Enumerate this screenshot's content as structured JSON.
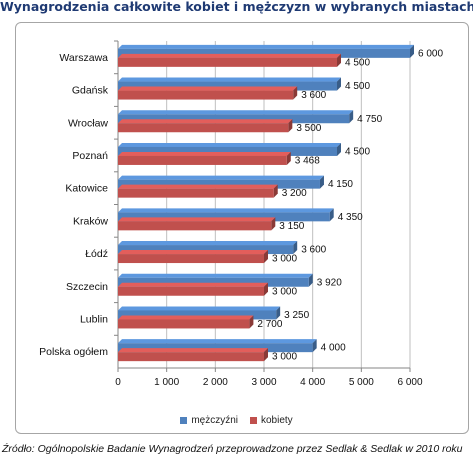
{
  "title": "Wynagrodzenia całkowite kobiet i mężczyzn w  wybranych miastach",
  "source": "Źródło: Ogólnopolskie Badanie Wynagrodzeń przeprowadzone przez Sedlak & Sedlak w 2010 roku",
  "chart_data": {
    "type": "bar",
    "orientation": "horizontal",
    "title": "Wynagrodzenia całkowite kobiet i mężczyzn w  wybranych miastach",
    "categories": [
      "Warszawa",
      "Gdańsk",
      "Wrocław",
      "Poznań",
      "Katowice",
      "Kraków",
      "Łódź",
      "Szczecin",
      "Lublin",
      "Polska ogółem"
    ],
    "series": [
      {
        "name": "mężczyźni",
        "color": "#4f81bd",
        "values": [
          6000,
          4500,
          4750,
          4500,
          4150,
          4350,
          3600,
          3920,
          3250,
          4000
        ],
        "labels": [
          "6 000",
          "4 500",
          "4 750",
          "4 500",
          "4 150",
          "4 350",
          "3 600",
          "3 920",
          "3 250",
          "4 000"
        ]
      },
      {
        "name": "kobiety",
        "color": "#c0504d",
        "values": [
          4500,
          3600,
          3500,
          3468,
          3200,
          3150,
          3000,
          3000,
          2700,
          3000
        ],
        "labels": [
          "4 500",
          "3 600",
          "3 500",
          "3 468",
          "3 200",
          "3 150",
          "3 000",
          "3 000",
          "2 700",
          "3 000"
        ]
      }
    ],
    "xlim": [
      0,
      6000
    ],
    "xticks": [
      0,
      1000,
      2000,
      3000,
      4000,
      5000,
      6000
    ],
    "xtick_labels": [
      "0",
      "1 000",
      "2 000",
      "3 000",
      "4 000",
      "5 000",
      "6 000"
    ],
    "grid": true,
    "legend_position": "bottom"
  }
}
